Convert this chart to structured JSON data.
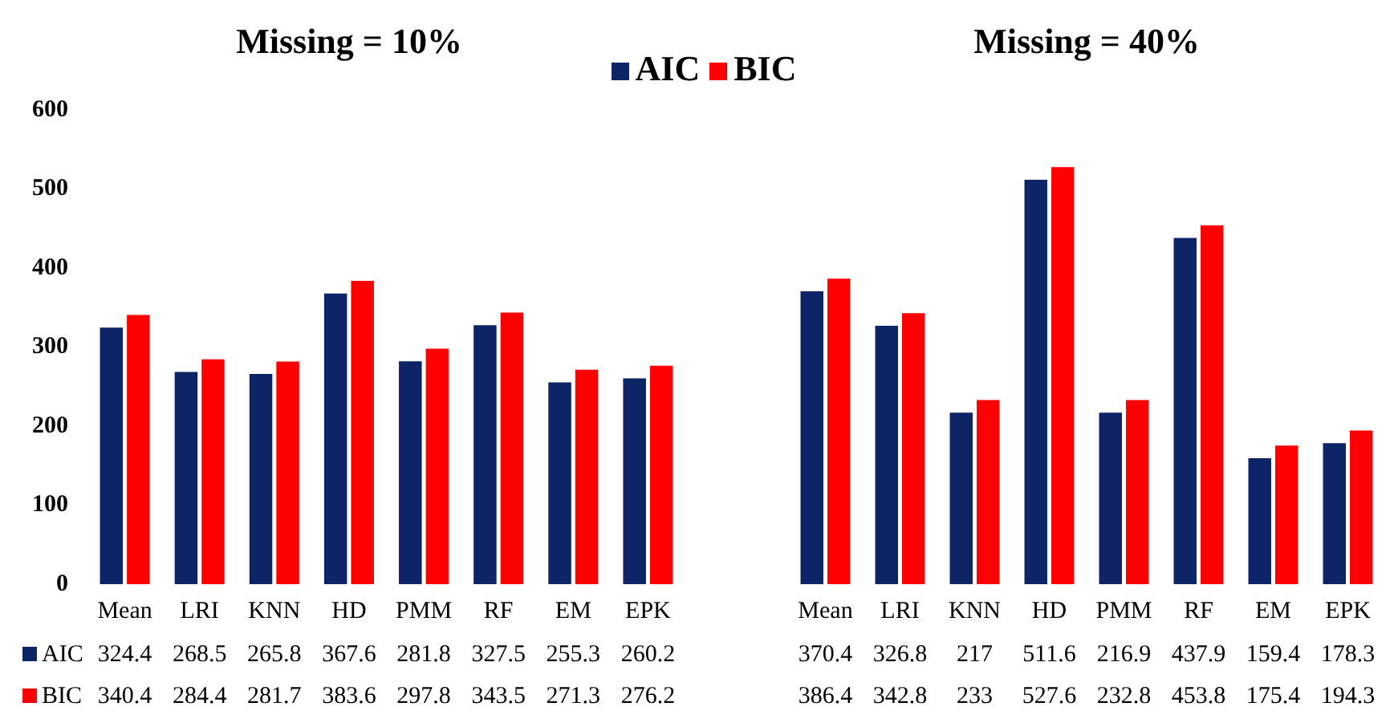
{
  "chart_data": [
    {
      "type": "bar",
      "title": "Missing = 10%",
      "categories": [
        "Mean",
        "LRI",
        "KNN",
        "HD",
        "PMM",
        "RF",
        "EM",
        "EPK"
      ],
      "series": [
        {
          "name": "AIC",
          "color": "#0d2466",
          "values": [
            324.4,
            268.5,
            265.8,
            367.6,
            281.8,
            327.5,
            255.3,
            260.2
          ]
        },
        {
          "name": "BIC",
          "color": "#ff0000",
          "values": [
            340.4,
            284.4,
            281.7,
            383.6,
            297.8,
            343.5,
            271.3,
            276.2
          ]
        }
      ],
      "ylim": [
        0,
        600
      ],
      "yticks": [
        0,
        100,
        200,
        300,
        400,
        500,
        600
      ],
      "grid": false,
      "legend": "bottom left",
      "data_labels": true
    },
    {
      "type": "bar",
      "title": "Missing = 40%",
      "categories": [
        "Mean",
        "LRI",
        "KNN",
        "HD",
        "PMM",
        "RF",
        "EM",
        "EPK"
      ],
      "series": [
        {
          "name": "AIC",
          "color": "#0d2466",
          "values": [
            370.4,
            326.8,
            217,
            511.6,
            216.9,
            437.9,
            159.4,
            178.3
          ]
        },
        {
          "name": "BIC",
          "color": "#ff0000",
          "values": [
            386.4,
            342.8,
            233,
            527.6,
            232.8,
            453.8,
            175.4,
            194.3
          ]
        }
      ],
      "ylim": [
        0,
        600
      ],
      "yticks": [
        0,
        100,
        200,
        300,
        400,
        500,
        600
      ],
      "grid": false,
      "tick_labels": "x",
      "legend": "top left",
      "data_labels": true
    }
  ]
}
